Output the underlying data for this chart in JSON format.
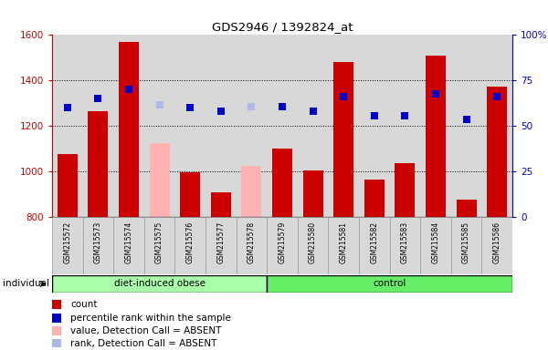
{
  "title": "GDS2946 / 1392824_at",
  "samples": [
    "GSM215572",
    "GSM215573",
    "GSM215574",
    "GSM215575",
    "GSM215576",
    "GSM215577",
    "GSM215578",
    "GSM215579",
    "GSM215580",
    "GSM215581",
    "GSM215582",
    "GSM215583",
    "GSM215584",
    "GSM215585",
    "GSM215586"
  ],
  "counts": [
    1075,
    1265,
    1570,
    null,
    995,
    910,
    null,
    1100,
    1005,
    1480,
    965,
    1035,
    1510,
    875,
    1375
  ],
  "counts_absent": [
    null,
    null,
    null,
    1125,
    null,
    null,
    1025,
    null,
    null,
    null,
    null,
    null,
    null,
    null,
    null
  ],
  "ranks": [
    1280,
    1320,
    1360,
    null,
    1280,
    1265,
    null,
    1285,
    1265,
    1330,
    1245,
    1245,
    1340,
    1230,
    1330
  ],
  "ranks_absent": [
    null,
    null,
    null,
    1295,
    null,
    null,
    1285,
    null,
    null,
    null,
    null,
    null,
    null,
    null,
    null
  ],
  "ylim_left": [
    800,
    1600
  ],
  "ylim_right": [
    0,
    100
  ],
  "yticks_left": [
    800,
    1000,
    1200,
    1400,
    1600
  ],
  "yticks_right": [
    0,
    25,
    50,
    75,
    100
  ],
  "bar_color_present": "#cc0000",
  "bar_color_absent": "#ffb3b3",
  "rank_color_present": "#0000cc",
  "rank_color_absent": "#b0b8e8",
  "bg_color": "#d8d8d8",
  "group1_label": "diet-induced obese",
  "group1_count": 7,
  "group2_label": "control",
  "group1_color": "#aaffaa",
  "group2_color": "#66ee66",
  "individual_label": "individual",
  "legend_items": [
    {
      "label": "count",
      "color": "#cc0000"
    },
    {
      "label": "percentile rank within the sample",
      "color": "#0000cc"
    },
    {
      "label": "value, Detection Call = ABSENT",
      "color": "#ffb3b3"
    },
    {
      "label": "rank, Detection Call = ABSENT",
      "color": "#b0b8e8"
    }
  ]
}
